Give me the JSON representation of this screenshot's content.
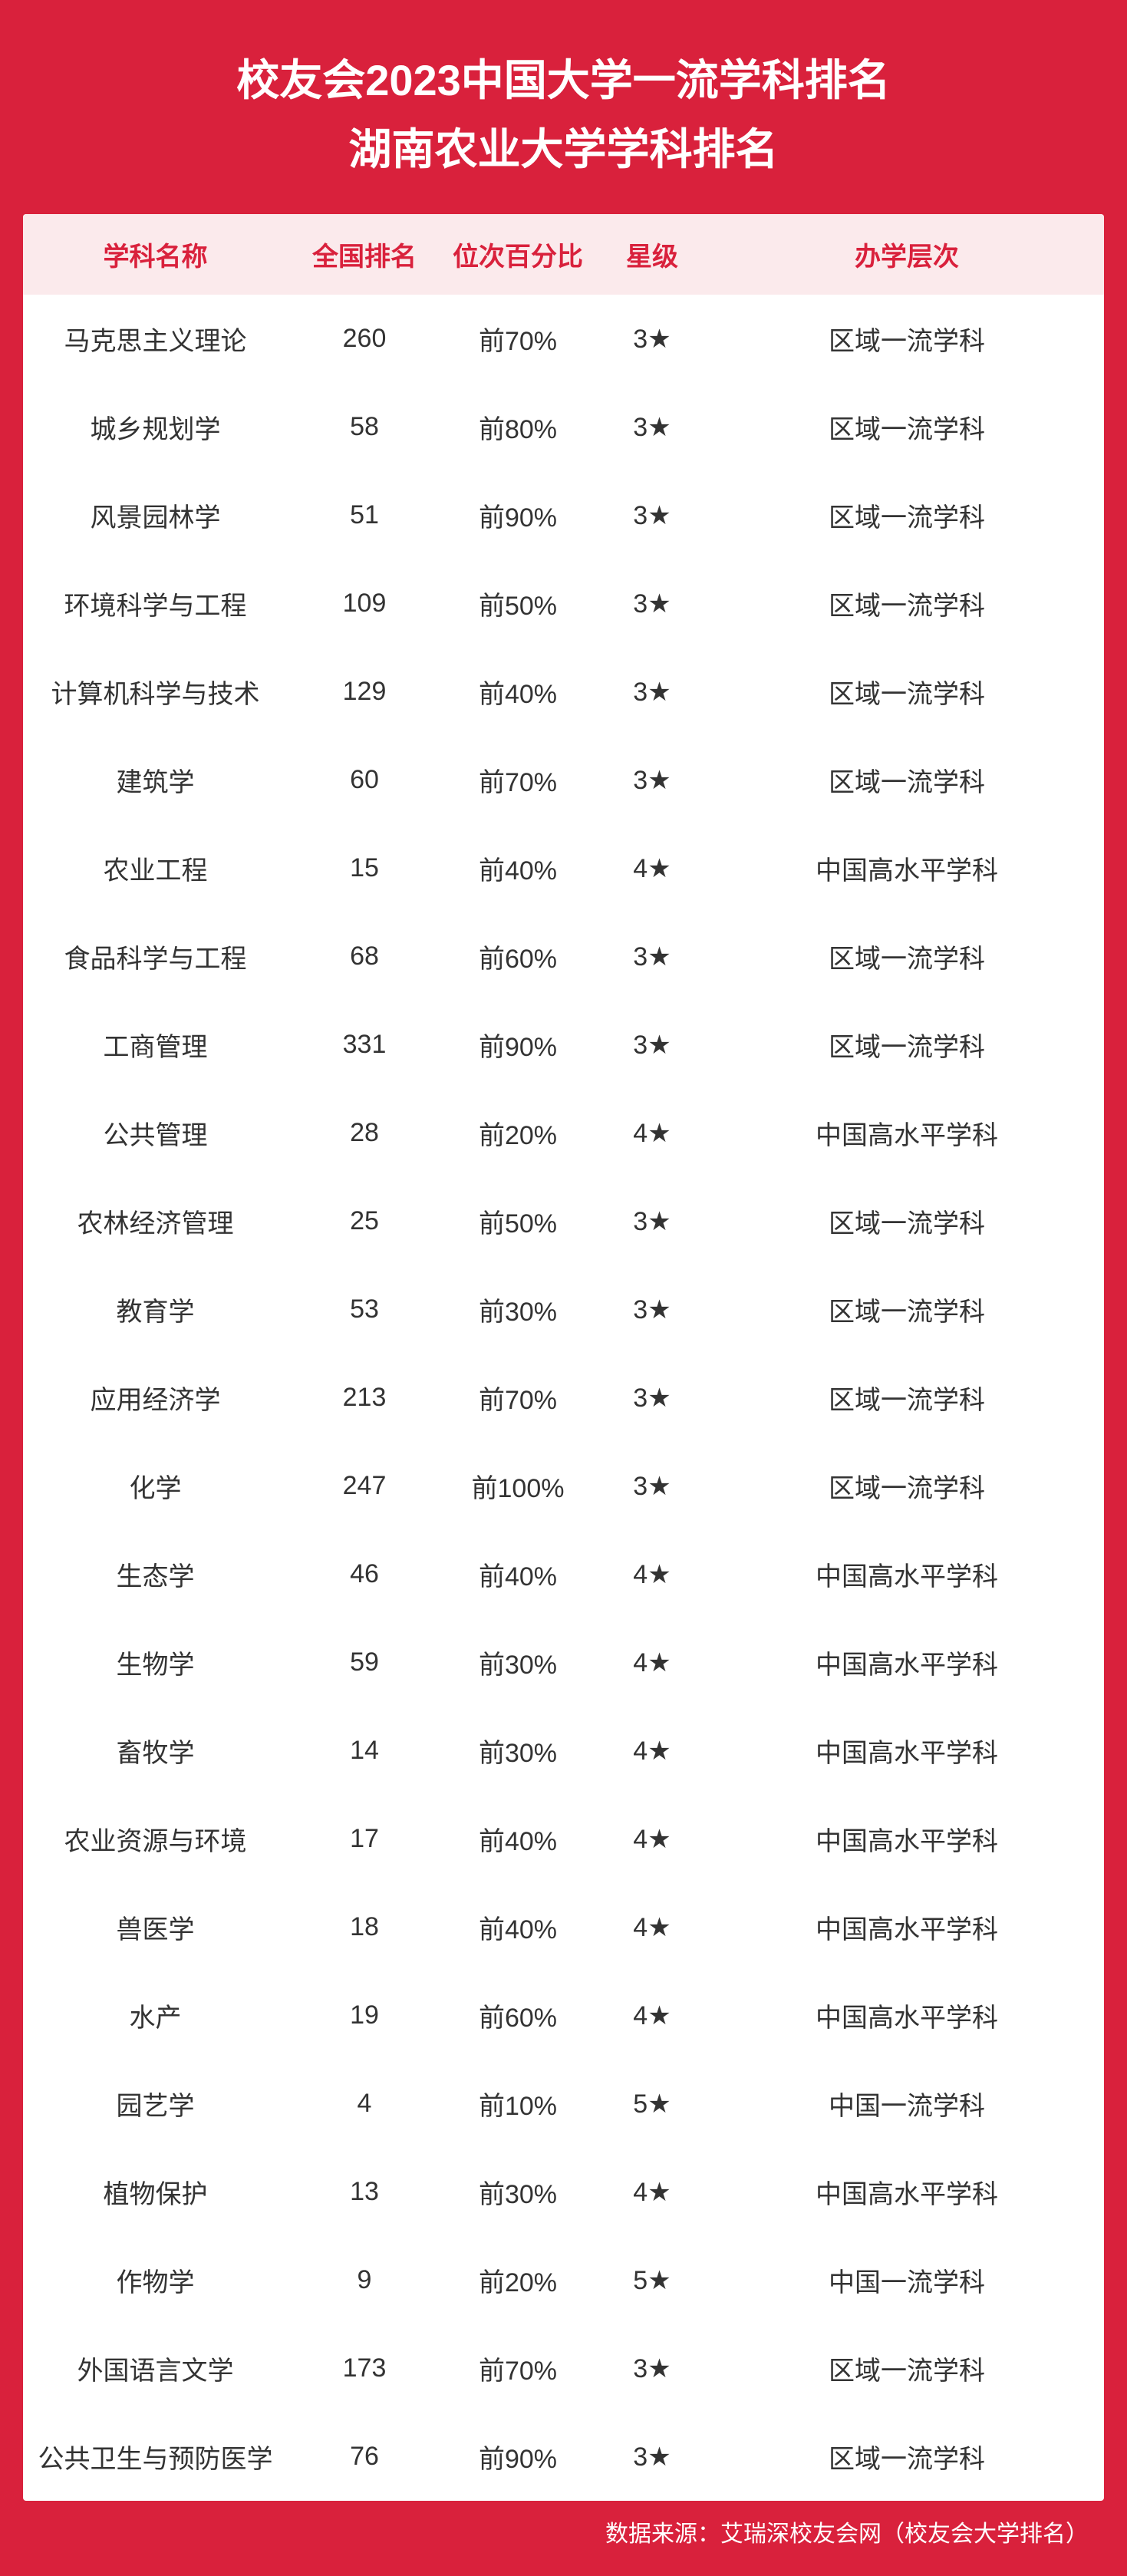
{
  "title": {
    "line1": "校友会2023中国大学一流学科排名",
    "line2": "湖南农业大学学科排名"
  },
  "columns": {
    "name": "学科名称",
    "rank": "全国排名",
    "percentile": "位次百分比",
    "star": "星级",
    "level": "办学层次"
  },
  "rows": [
    {
      "name": "马克思主义理论",
      "rank": "260",
      "pct": "前70%",
      "star": "3★",
      "level": "区域一流学科"
    },
    {
      "name": "城乡规划学",
      "rank": "58",
      "pct": "前80%",
      "star": "3★",
      "level": "区域一流学科"
    },
    {
      "name": "风景园林学",
      "rank": "51",
      "pct": "前90%",
      "star": "3★",
      "level": "区域一流学科"
    },
    {
      "name": "环境科学与工程",
      "rank": "109",
      "pct": "前50%",
      "star": "3★",
      "level": "区域一流学科"
    },
    {
      "name": "计算机科学与技术",
      "rank": "129",
      "pct": "前40%",
      "star": "3★",
      "level": "区域一流学科"
    },
    {
      "name": "建筑学",
      "rank": "60",
      "pct": "前70%",
      "star": "3★",
      "level": "区域一流学科"
    },
    {
      "name": "农业工程",
      "rank": "15",
      "pct": "前40%",
      "star": "4★",
      "level": "中国高水平学科"
    },
    {
      "name": "食品科学与工程",
      "rank": "68",
      "pct": "前60%",
      "star": "3★",
      "level": "区域一流学科"
    },
    {
      "name": "工商管理",
      "rank": "331",
      "pct": "前90%",
      "star": "3★",
      "level": "区域一流学科"
    },
    {
      "name": "公共管理",
      "rank": "28",
      "pct": "前20%",
      "star": "4★",
      "level": "中国高水平学科"
    },
    {
      "name": "农林经济管理",
      "rank": "25",
      "pct": "前50%",
      "star": "3★",
      "level": "区域一流学科"
    },
    {
      "name": "教育学",
      "rank": "53",
      "pct": "前30%",
      "star": "3★",
      "level": "区域一流学科"
    },
    {
      "name": "应用经济学",
      "rank": "213",
      "pct": "前70%",
      "star": "3★",
      "level": "区域一流学科"
    },
    {
      "name": "化学",
      "rank": "247",
      "pct": "前100%",
      "star": "3★",
      "level": "区域一流学科"
    },
    {
      "name": "生态学",
      "rank": "46",
      "pct": "前40%",
      "star": "4★",
      "level": "中国高水平学科"
    },
    {
      "name": "生物学",
      "rank": "59",
      "pct": "前30%",
      "star": "4★",
      "level": "中国高水平学科"
    },
    {
      "name": "畜牧学",
      "rank": "14",
      "pct": "前30%",
      "star": "4★",
      "level": "中国高水平学科"
    },
    {
      "name": "农业资源与环境",
      "rank": "17",
      "pct": "前40%",
      "star": "4★",
      "level": "中国高水平学科"
    },
    {
      "name": "兽医学",
      "rank": "18",
      "pct": "前40%",
      "star": "4★",
      "level": "中国高水平学科"
    },
    {
      "name": "水产",
      "rank": "19",
      "pct": "前60%",
      "star": "4★",
      "level": "中国高水平学科"
    },
    {
      "name": "园艺学",
      "rank": "4",
      "pct": "前10%",
      "star": "5★",
      "level": "中国一流学科"
    },
    {
      "name": "植物保护",
      "rank": "13",
      "pct": "前30%",
      "star": "4★",
      "level": "中国高水平学科"
    },
    {
      "name": "作物学",
      "rank": "9",
      "pct": "前20%",
      "star": "5★",
      "level": "中国一流学科"
    },
    {
      "name": "外国语言文学",
      "rank": "173",
      "pct": "前70%",
      "star": "3★",
      "level": "区域一流学科"
    },
    {
      "name": "公共卫生与预防医学",
      "rank": "76",
      "pct": "前90%",
      "star": "3★",
      "level": "区域一流学科"
    }
  ],
  "footer": "数据来源：艾瑞深校友会网（校友会大学排名）",
  "styling": {
    "frame_bg": "#d9213c",
    "title_color": "#ffffff",
    "title_fontsize": 56,
    "header_bg": "#fbeaec",
    "header_color": "#d9213c",
    "header_fontsize": 34,
    "row_color": "#333333",
    "row_fontsize": 34,
    "table_bg": "#ffffff",
    "col_widths": {
      "name": 345,
      "rank": 200,
      "pct": 200,
      "star": 150,
      "level": "flex"
    },
    "row_padding_v": 33,
    "footer_color": "#ffffff",
    "footer_fontsize": 30
  }
}
